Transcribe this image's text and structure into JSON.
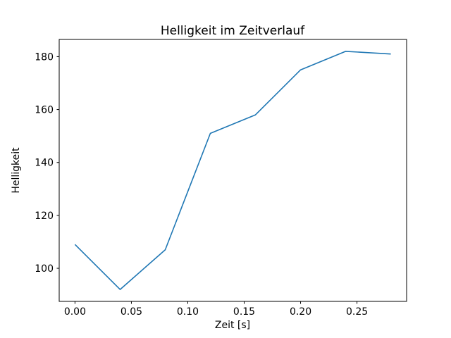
{
  "chart_data": {
    "type": "line",
    "title": "Helligkeit im Zeitverlauf",
    "xlabel": "Zeit [s]",
    "ylabel": "Helligkeit",
    "x": [
      0.0,
      0.04,
      0.08,
      0.12,
      0.16,
      0.2,
      0.24,
      0.28
    ],
    "values": [
      109,
      92,
      107,
      151,
      158,
      175,
      182,
      181
    ],
    "series_name": "Helligkeit",
    "xlim": [
      -0.014,
      0.294
    ],
    "ylim": [
      87.5,
      186.5
    ],
    "xticks": [
      0.0,
      0.05,
      0.1,
      0.15,
      0.2,
      0.25
    ],
    "xtick_labels": [
      "0.00",
      "0.05",
      "0.10",
      "0.15",
      "0.20",
      "0.25"
    ],
    "yticks": [
      100,
      120,
      140,
      160,
      180
    ],
    "ytick_labels": [
      "100",
      "120",
      "140",
      "160",
      "180"
    ],
    "line_color": "#1f77b4",
    "axis_color": "#000000",
    "background_color": "#ffffff",
    "grid": false,
    "legend_position": "none"
  }
}
